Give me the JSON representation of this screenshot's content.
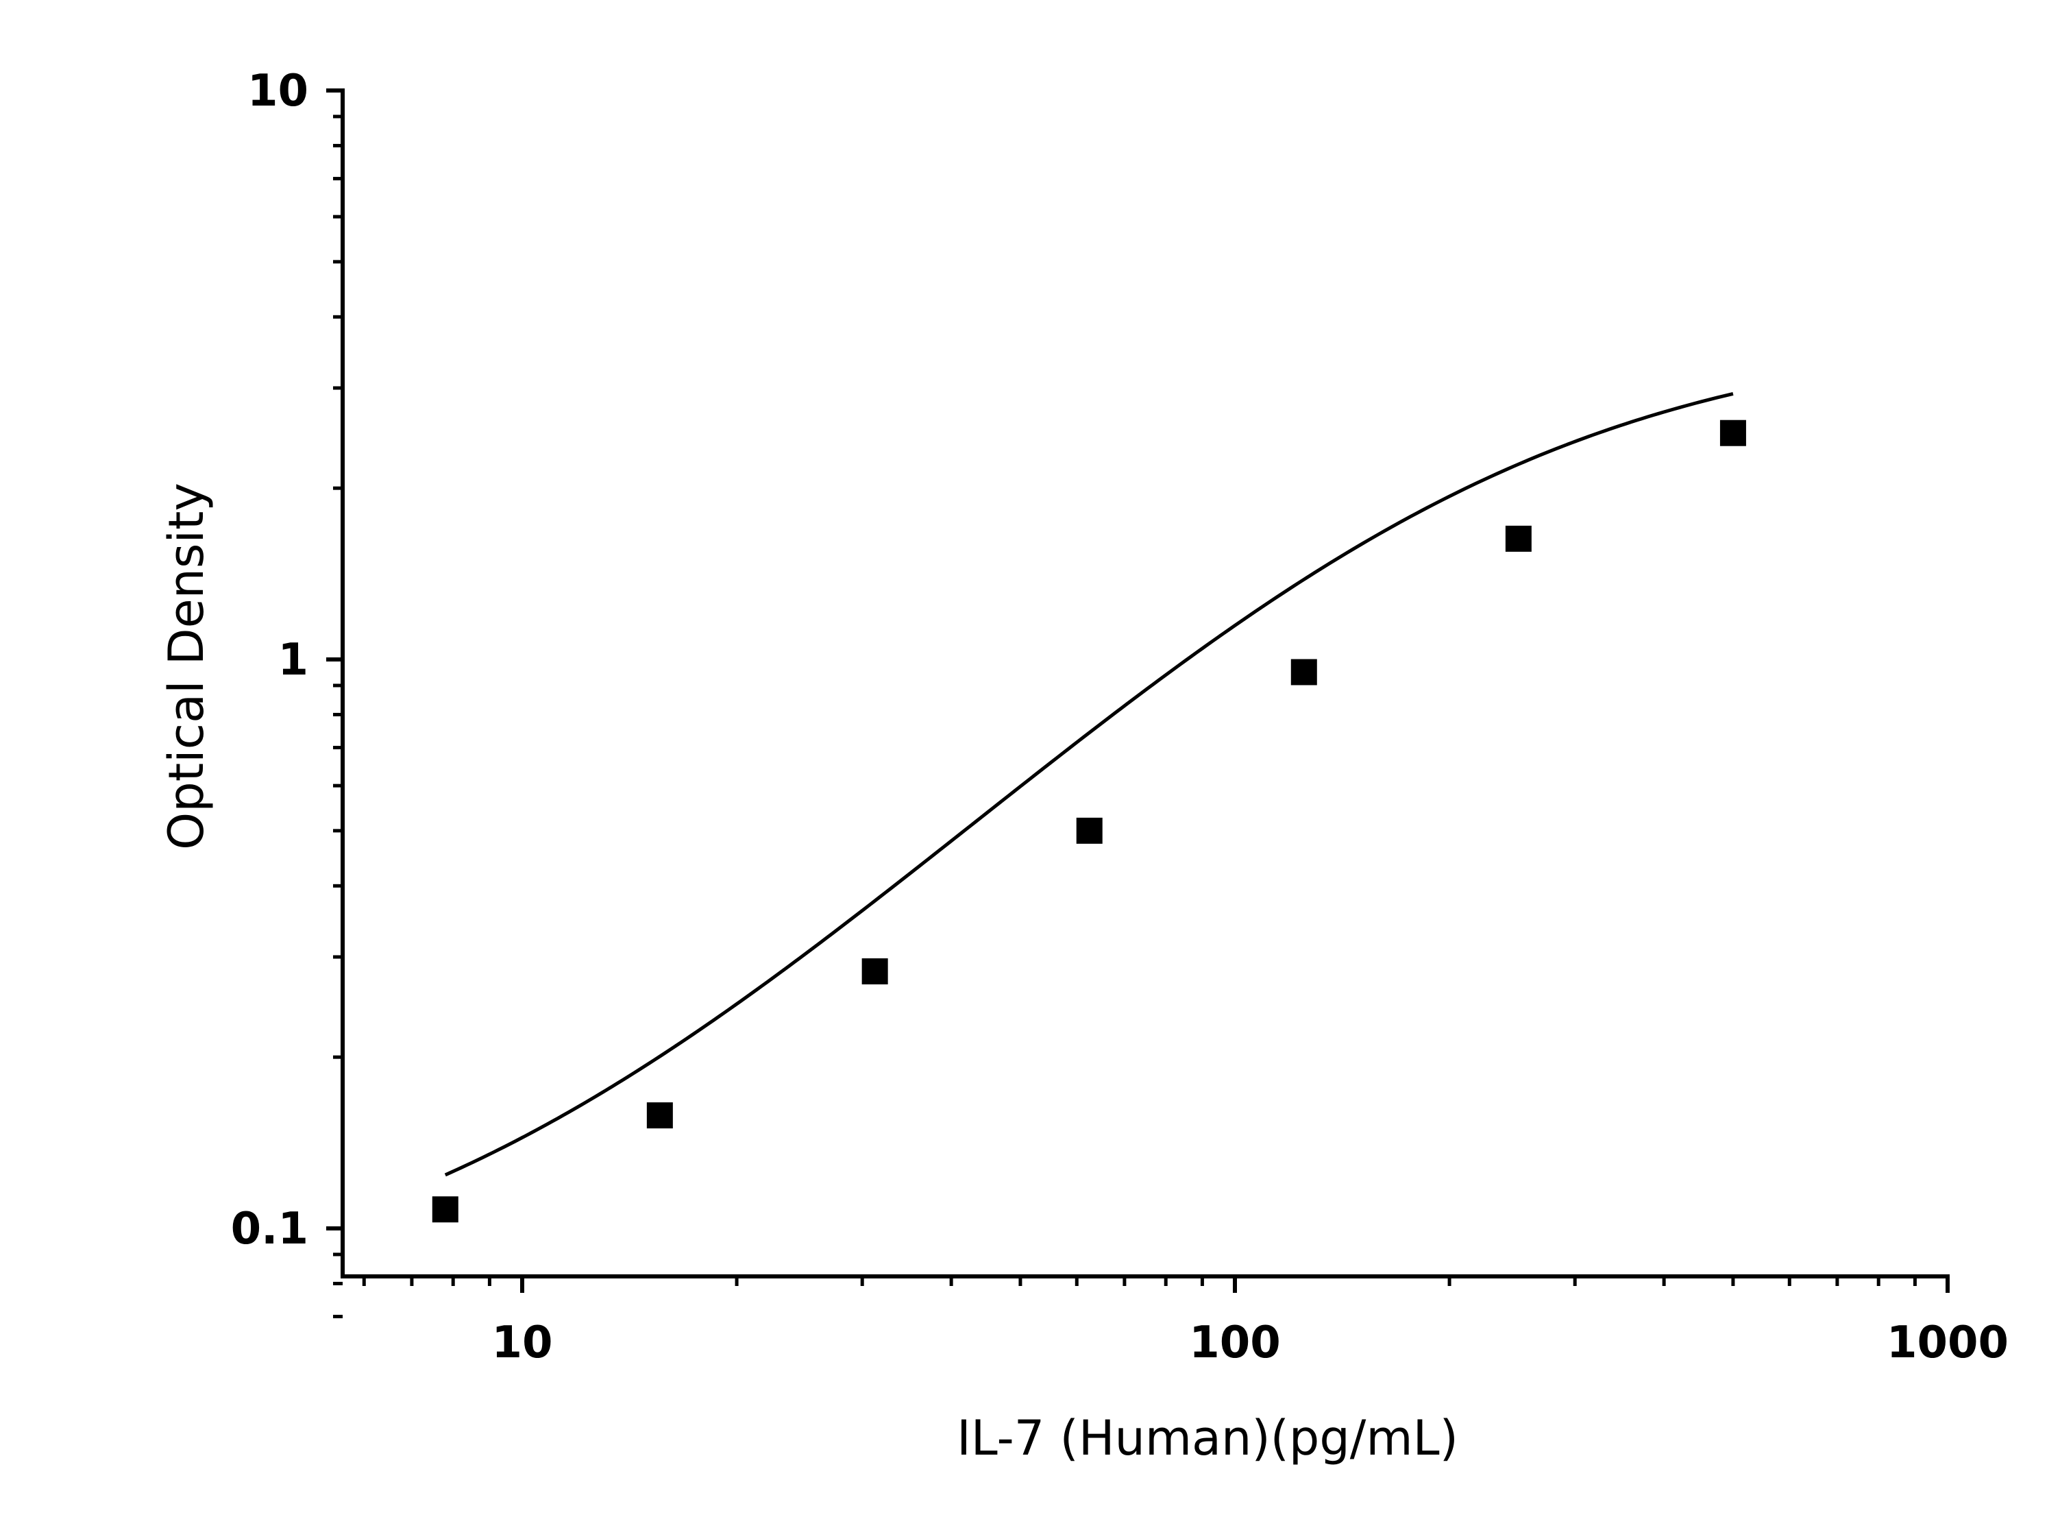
{
  "chart_data": {
    "type": "scatter",
    "title": "",
    "xlabel": "IL-7 (Human)(pg/mL)",
    "ylabel": "Optical Density",
    "x_scale": "log",
    "y_scale": "log",
    "xlim": [
      6,
      1000
    ],
    "ylim": [
      0.07,
      10
    ],
    "x_ticks": [
      {
        "value": 10,
        "label": "10"
      },
      {
        "value": 100,
        "label": "100"
      },
      {
        "value": 1000,
        "label": "1000"
      }
    ],
    "y_ticks": [
      {
        "value": 0.1,
        "label": "0.1"
      },
      {
        "value": 1,
        "label": "1"
      },
      {
        "value": 10,
        "label": "10"
      }
    ],
    "grid": false,
    "legend": "none",
    "series": [
      {
        "marker": "square",
        "color": "#000000",
        "x": [
          7.8,
          15.6,
          31.25,
          62.5,
          125,
          250,
          500
        ],
        "y": [
          0.108,
          0.158,
          0.283,
          0.5,
          0.95,
          1.63,
          2.5
        ]
      }
    ],
    "fit_curve": {
      "type": "4PL",
      "color": "#000000",
      "A": 0.07,
      "B": 1.3,
      "C": 200,
      "D": 3.8
    }
  }
}
